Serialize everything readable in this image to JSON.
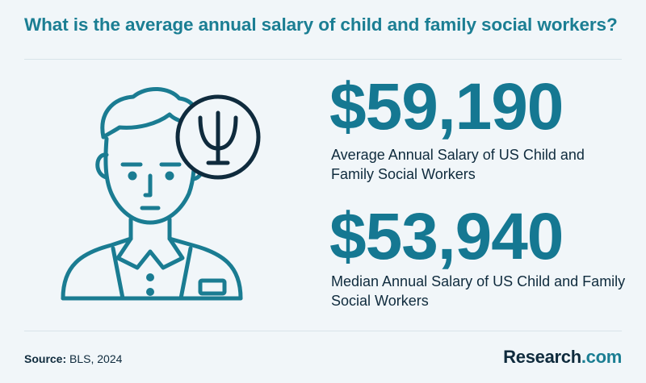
{
  "title": "What is the average annual salary of child and family social workers?",
  "stats": [
    {
      "value": "$59,190",
      "label": "Average Annual Salary of US Child and Family Social Workers"
    },
    {
      "value": "$53,940",
      "label": "Median Annual Salary of US Child and Family Social Workers"
    }
  ],
  "footer": {
    "source_label": "Source:",
    "source_text": "BLS, 2024",
    "logo_main": "Research",
    "logo_suffix": ".com"
  },
  "colors": {
    "accent": "#1b7e93",
    "stat": "#157892",
    "dark": "#0f2b3d",
    "background": "#f1f6f9"
  },
  "icons": [
    "social-worker-icon",
    "psi-symbol-icon"
  ]
}
